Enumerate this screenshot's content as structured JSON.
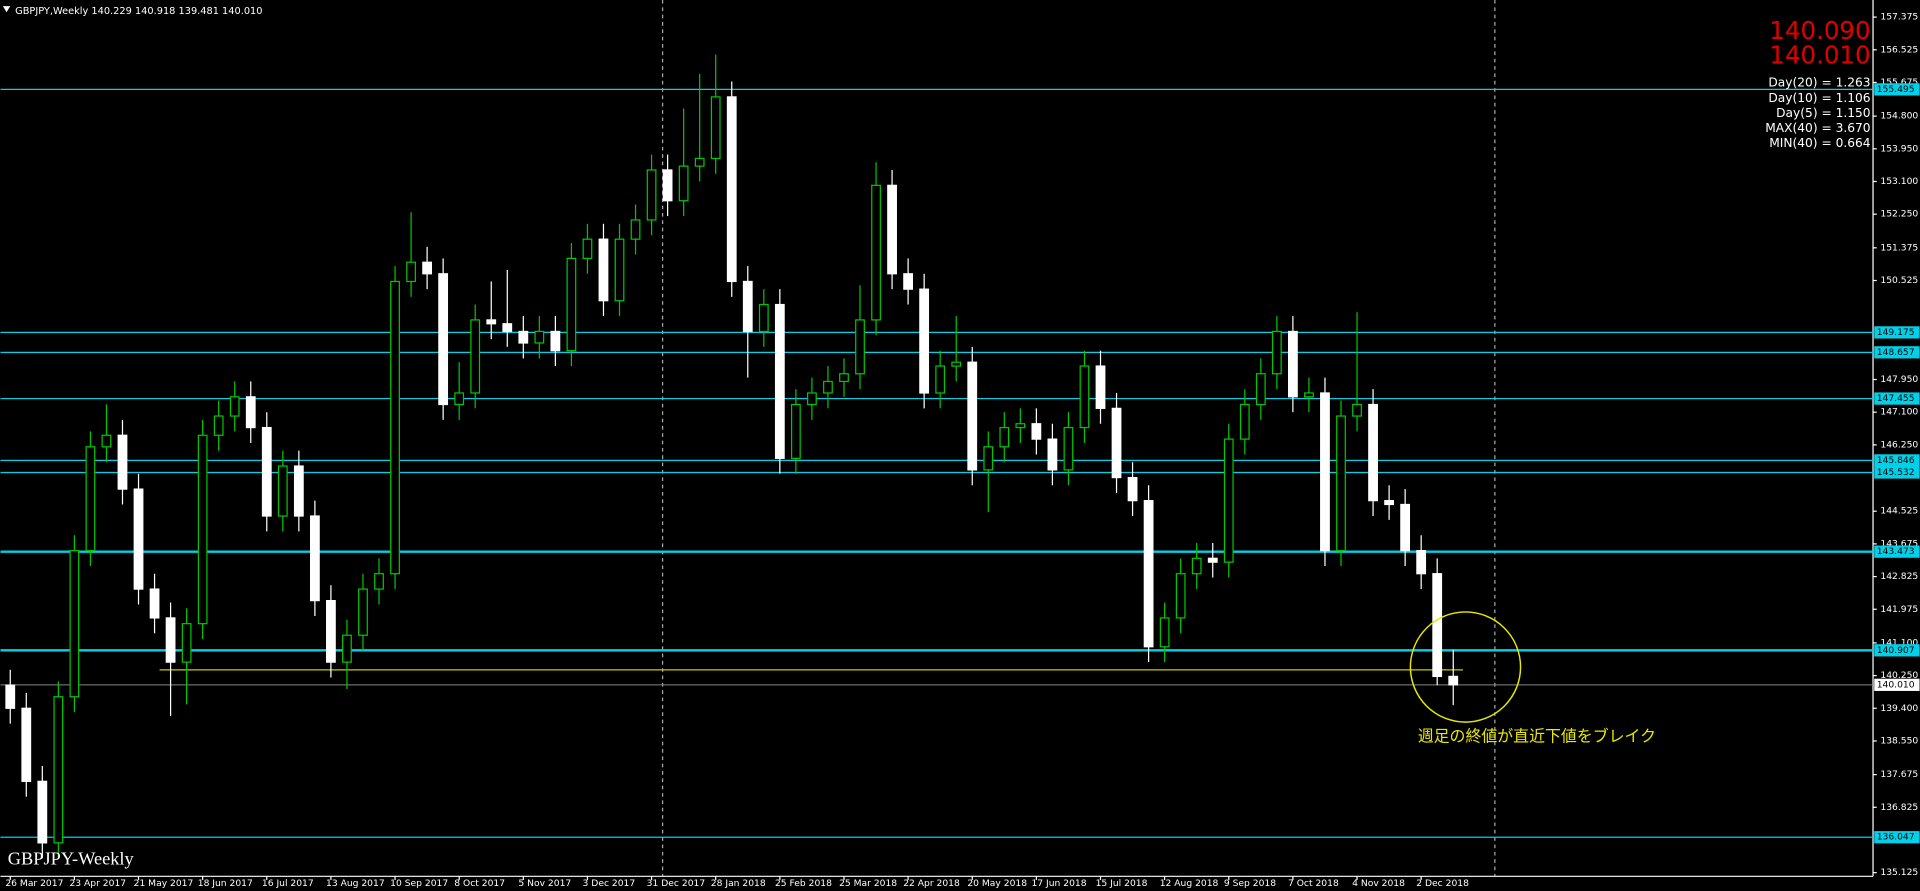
{
  "chart_data": {
    "type": "candlestick",
    "header": "GBPJPY,Weekly  140.229 140.918 139.481 140.010",
    "watermark": "GBPJPY-Weekly",
    "quotes": [
      "140.090",
      "140.010"
    ],
    "info": [
      "Day(20) = 1.263",
      "Day(10) = 1.106",
      "Day(5) = 1.150",
      "MAX(40) = 3.670",
      "MIN(40) = 0.664"
    ],
    "annotation": "週足の終値が直近下値をブレイク",
    "bull_color": "#00c800",
    "bear_color": "#ffffff",
    "level_color": "#00d0e8",
    "support_color": "#c8c800",
    "ylim": [
      135.03,
      157.82
    ],
    "yticks": [
      157.375,
      156.525,
      155.675,
      {
        "value": 154.8,
        "label": "154.800"
      },
      {
        "value": 153.95,
        "label": "153.950"
      },
      {
        "value": 153.1,
        "label": "153.100"
      },
      {
        "value": 152.25,
        "label": "152.250"
      },
      151.375,
      {
        "value": 150.525,
        "label": "150.525"
      },
      {
        "value": 147.95,
        "label": "147.950"
      },
      {
        "value": 147.1,
        "label": "147.100"
      },
      {
        "value": 146.25,
        "label": "146.250"
      },
      144.525,
      143.675,
      142.825,
      141.975,
      {
        "value": 141.1,
        "label": "141.100"
      },
      {
        "value": 140.25,
        "label": "140.250"
      },
      {
        "value": 139.4,
        "label": "139.400"
      },
      {
        "value": 138.55,
        "label": "138.550"
      },
      137.675,
      136.825,
      135.125
    ],
    "levels": [
      155.495,
      149.175,
      148.657,
      147.455,
      145.846,
      145.532,
      143.473,
      140.907,
      136.047
    ],
    "current": {
      "value": 140.01,
      "label": "140.010"
    },
    "support": 140.4,
    "xlabels": [
      "26 Mar 2017",
      "23 Apr 2017",
      "21 May 2017",
      "18 Jun 2017",
      "16 Jul 2017",
      "13 Aug 2017",
      "10 Sep 2017",
      "8 Oct 2017",
      "5 Nov 2017",
      "3 Dec 2017",
      "31 Dec 2017",
      "28 Jan 2018",
      "25 Feb 2018",
      "25 Mar 2018",
      "22 Apr 2018",
      "20 May 2018",
      "17 Jun 2018",
      "15 Jul 2018",
      "12 Aug 2018",
      "9 Sep 2018",
      "7 Oct 2018",
      "4 Nov 2018",
      "2 Dec 2018"
    ],
    "candles": [
      [
        140.0,
        140.4,
        139.0,
        139.4
      ],
      [
        139.4,
        139.8,
        137.1,
        137.5
      ],
      [
        137.5,
        137.9,
        135.5,
        135.9
      ],
      [
        135.9,
        140.1,
        135.5,
        139.7
      ],
      [
        139.7,
        143.9,
        139.3,
        143.5
      ],
      [
        143.5,
        146.6,
        143.1,
        146.2
      ],
      [
        146.2,
        147.3,
        145.8,
        146.5
      ],
      [
        146.5,
        146.9,
        144.7,
        145.1
      ],
      [
        145.1,
        145.5,
        142.1,
        142.5
      ],
      [
        142.5,
        142.9,
        141.35,
        141.75
      ],
      [
        141.75,
        142.15,
        139.2,
        140.6
      ],
      [
        140.6,
        142.0,
        139.5,
        141.6
      ],
      [
        141.6,
        146.9,
        141.2,
        146.5
      ],
      [
        146.5,
        147.4,
        146.1,
        147.0
      ],
      [
        147.0,
        147.9,
        146.6,
        147.5
      ],
      [
        147.5,
        147.9,
        146.3,
        146.7
      ],
      [
        146.7,
        147.1,
        144.0,
        144.4
      ],
      [
        144.4,
        146.1,
        144.0,
        145.7
      ],
      [
        145.7,
        146.1,
        144.0,
        144.4
      ],
      [
        144.4,
        144.8,
        141.8,
        142.2
      ],
      [
        142.2,
        142.6,
        140.2,
        140.6
      ],
      [
        140.6,
        141.7,
        139.9,
        141.3
      ],
      [
        141.3,
        142.9,
        140.9,
        142.5
      ],
      [
        142.5,
        143.3,
        142.1,
        142.9
      ],
      [
        142.9,
        150.9,
        142.5,
        150.5
      ],
      [
        150.5,
        152.3,
        150.1,
        151.0
      ],
      [
        151.0,
        151.4,
        150.3,
        150.7
      ],
      [
        150.7,
        151.1,
        146.9,
        147.3
      ],
      [
        147.3,
        148.4,
        146.9,
        147.6
      ],
      [
        147.6,
        149.9,
        147.2,
        149.5
      ],
      [
        149.5,
        150.5,
        149.0,
        149.4
      ],
      [
        149.4,
        150.8,
        148.8,
        149.2
      ],
      [
        149.2,
        149.6,
        148.5,
        148.9
      ],
      [
        148.9,
        149.6,
        148.5,
        149.2
      ],
      [
        149.2,
        149.6,
        148.3,
        148.7
      ],
      [
        148.7,
        151.5,
        148.3,
        151.1
      ],
      [
        151.1,
        152.0,
        150.7,
        151.6
      ],
      [
        151.6,
        152.0,
        149.6,
        150.0
      ],
      [
        150.0,
        152.0,
        149.6,
        151.6
      ],
      [
        151.6,
        152.5,
        151.2,
        152.1
      ],
      [
        152.1,
        153.8,
        151.7,
        153.4
      ],
      [
        153.4,
        153.8,
        152.2,
        152.6
      ],
      [
        152.6,
        155.0,
        152.2,
        153.5
      ],
      [
        153.5,
        155.9,
        153.1,
        153.7
      ],
      [
        153.7,
        156.4,
        153.3,
        155.3
      ],
      [
        155.3,
        155.7,
        150.1,
        150.5
      ],
      [
        150.5,
        150.9,
        148.0,
        149.2
      ],
      [
        149.2,
        150.3,
        148.8,
        149.9
      ],
      [
        149.9,
        150.3,
        145.5,
        145.9
      ],
      [
        145.9,
        147.7,
        145.5,
        147.3
      ],
      [
        147.3,
        148.0,
        146.9,
        147.6
      ],
      [
        147.6,
        148.3,
        147.2,
        147.9
      ],
      [
        147.9,
        148.5,
        147.5,
        148.1
      ],
      [
        148.1,
        150.4,
        147.7,
        149.5
      ],
      [
        149.5,
        153.6,
        149.1,
        153.0
      ],
      [
        153.0,
        153.4,
        150.3,
        150.7
      ],
      [
        150.7,
        151.1,
        149.9,
        150.3
      ],
      [
        150.3,
        150.7,
        147.2,
        147.6
      ],
      [
        147.6,
        148.7,
        147.2,
        148.3
      ],
      [
        148.3,
        149.6,
        147.9,
        148.4
      ],
      [
        148.4,
        148.8,
        145.2,
        145.6
      ],
      [
        145.6,
        146.6,
        144.5,
        146.2
      ],
      [
        146.2,
        147.1,
        145.8,
        146.7
      ],
      [
        146.7,
        147.2,
        146.3,
        146.8
      ],
      [
        146.8,
        147.2,
        146.0,
        146.4
      ],
      [
        146.4,
        146.8,
        145.2,
        145.6
      ],
      [
        145.6,
        147.1,
        145.2,
        146.7
      ],
      [
        146.7,
        148.7,
        146.3,
        148.3
      ],
      [
        148.3,
        148.7,
        146.8,
        147.2
      ],
      [
        147.2,
        147.6,
        145.0,
        145.4
      ],
      [
        145.4,
        145.8,
        144.4,
        144.8
      ],
      [
        144.8,
        145.2,
        140.6,
        141.0
      ],
      [
        141.0,
        142.15,
        140.6,
        141.75
      ],
      [
        141.75,
        143.3,
        141.35,
        142.9
      ],
      [
        142.9,
        143.7,
        142.5,
        143.3
      ],
      [
        143.3,
        143.7,
        142.8,
        143.2
      ],
      [
        143.2,
        146.8,
        142.8,
        146.4
      ],
      [
        146.4,
        147.7,
        146.0,
        147.3
      ],
      [
        147.3,
        148.5,
        146.9,
        148.1
      ],
      [
        148.1,
        149.6,
        147.7,
        149.2
      ],
      [
        149.2,
        149.6,
        147.1,
        147.5
      ],
      [
        147.5,
        148.0,
        147.1,
        147.6
      ],
      [
        147.6,
        148.0,
        143.1,
        143.5
      ],
      [
        143.5,
        147.4,
        143.1,
        147.0
      ],
      [
        147.0,
        149.7,
        146.6,
        147.3
      ],
      [
        147.3,
        147.7,
        144.4,
        144.8
      ],
      [
        144.8,
        145.2,
        144.3,
        144.7
      ],
      [
        144.7,
        145.1,
        143.1,
        143.5
      ],
      [
        143.5,
        143.9,
        142.5,
        142.9
      ],
      [
        142.9,
        143.3,
        140.0,
        140.229
      ],
      [
        140.229,
        140.918,
        139.481,
        140.01
      ]
    ]
  }
}
